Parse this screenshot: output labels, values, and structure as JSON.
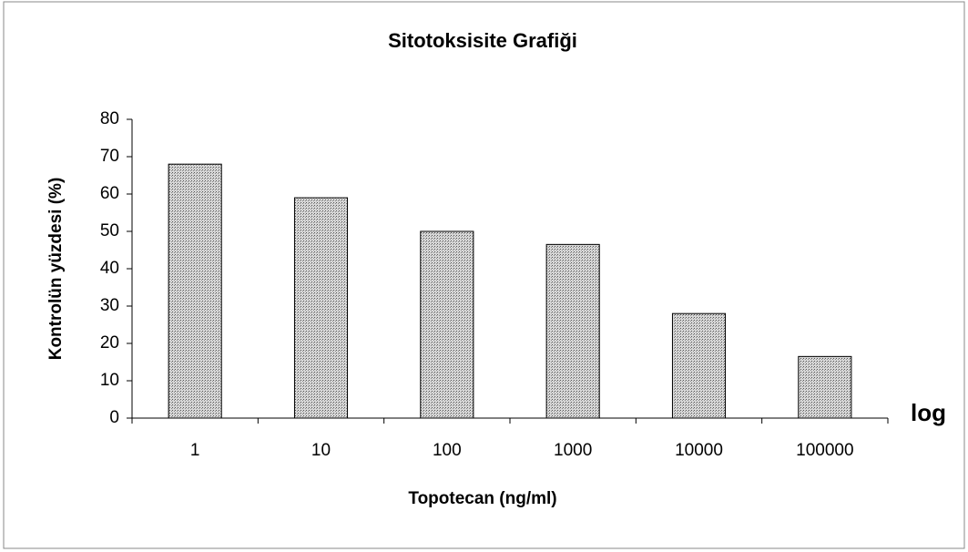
{
  "chart_data": {
    "type": "bar",
    "title": "Sitotoksisite Grafiği",
    "x_label": "Topotecan (ng/ml)",
    "y_label": "Kontrolün yüzdesi (%)",
    "annotation": "log",
    "categories": [
      "1",
      "10",
      "100",
      "1000",
      "10000",
      "100000"
    ],
    "values": [
      68,
      59,
      50,
      46.5,
      28,
      16.5
    ],
    "color": "#b8b8b8",
    "ylim": [
      0,
      80
    ],
    "yticks": [
      0,
      10,
      20,
      30,
      40,
      50,
      60,
      70,
      80
    ],
    "grid": false
  }
}
